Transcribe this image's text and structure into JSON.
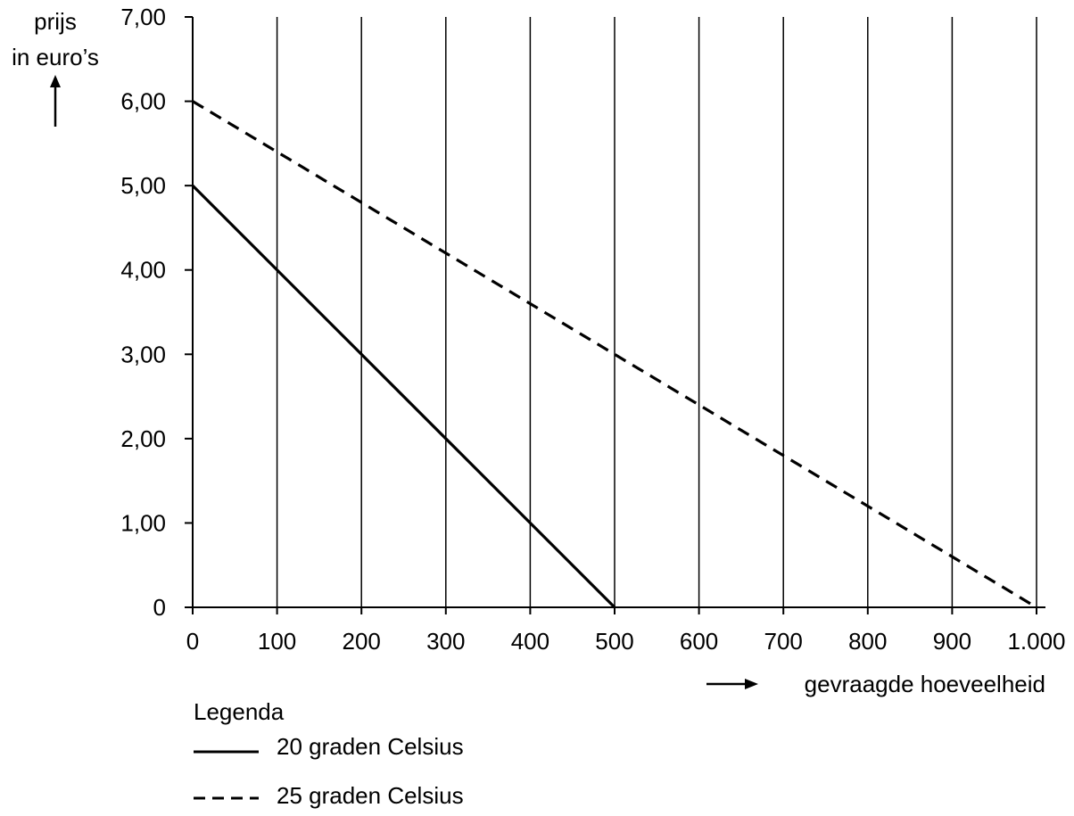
{
  "chart_data": {
    "type": "line",
    "xlabel": "gevraagde hoeveelheid",
    "ylabel_lines": [
      "prijs",
      "in euro’s"
    ],
    "xlim": [
      0,
      1000
    ],
    "ylim": [
      0,
      7
    ],
    "x_ticks": [
      {
        "value": 0,
        "label": "0"
      },
      {
        "value": 100,
        "label": "100"
      },
      {
        "value": 200,
        "label": "200"
      },
      {
        "value": 300,
        "label": "300"
      },
      {
        "value": 400,
        "label": "400"
      },
      {
        "value": 500,
        "label": "500"
      },
      {
        "value": 600,
        "label": "600"
      },
      {
        "value": 700,
        "label": "700"
      },
      {
        "value": 800,
        "label": "800"
      },
      {
        "value": 900,
        "label": "900"
      },
      {
        "value": 1000,
        "label": "1.000"
      }
    ],
    "y_ticks": [
      {
        "value": 0,
        "label": "0"
      },
      {
        "value": 1,
        "label": "1,00"
      },
      {
        "value": 2,
        "label": "2,00"
      },
      {
        "value": 3,
        "label": "3,00"
      },
      {
        "value": 4,
        "label": "4,00"
      },
      {
        "value": 5,
        "label": "5,00"
      },
      {
        "value": 6,
        "label": "6,00"
      },
      {
        "value": 7,
        "label": "7,00"
      }
    ],
    "grid": "vertical",
    "legend_title": "Legenda",
    "legend_placement": "bottom-left",
    "series": [
      {
        "name": "20 graden Celsius",
        "style": "solid",
        "color": "#000000",
        "points": [
          [
            0,
            5
          ],
          [
            500,
            0
          ]
        ]
      },
      {
        "name": "25 graden Celsius",
        "style": "dashed",
        "color": "#000000",
        "points": [
          [
            0,
            6
          ],
          [
            1000,
            0
          ]
        ]
      }
    ]
  }
}
